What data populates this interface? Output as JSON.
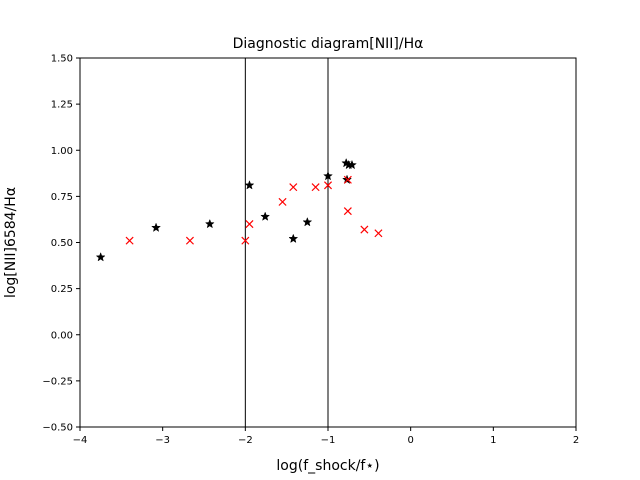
{
  "chart_data": {
    "type": "scatter",
    "title": "Diagnostic diagram[NII]/Hα",
    "xlabel": "log(f_shock/f⋆)",
    "ylabel": "log[NII]6584/Hα",
    "xlim": [
      -4,
      2
    ],
    "ylim": [
      -0.5,
      1.5
    ],
    "xticks": [
      "−4",
      "−3",
      "−2",
      "−1",
      "0",
      "1",
      "2"
    ],
    "yticks": [
      "−0.50",
      "−0.25",
      "0.00",
      "0.25",
      "0.50",
      "0.75",
      "1.00",
      "1.25",
      "1.50"
    ],
    "vlines": [
      -2,
      -1
    ],
    "grid": false,
    "series": [
      {
        "marker": "star",
        "color": "#000000",
        "points": [
          [
            -3.75,
            0.42
          ],
          [
            -3.08,
            0.58
          ],
          [
            -2.43,
            0.6
          ],
          [
            -1.95,
            0.81
          ],
          [
            -1.76,
            0.64
          ],
          [
            -1.42,
            0.52
          ],
          [
            -1.25,
            0.61
          ],
          [
            -1.0,
            0.86
          ],
          [
            -0.78,
            0.93
          ],
          [
            -0.75,
            0.92
          ],
          [
            -0.71,
            0.92
          ],
          [
            -0.77,
            0.84
          ]
        ]
      },
      {
        "marker": "x",
        "color": "#ff0000",
        "points": [
          [
            -3.4,
            0.51
          ],
          [
            -2.67,
            0.51
          ],
          [
            -2.0,
            0.51
          ],
          [
            -1.95,
            0.6
          ],
          [
            -1.55,
            0.72
          ],
          [
            -1.42,
            0.8
          ],
          [
            -1.15,
            0.8
          ],
          [
            -1.0,
            0.81
          ],
          [
            -0.76,
            0.84
          ],
          [
            -0.76,
            0.67
          ],
          [
            -0.56,
            0.57
          ],
          [
            -0.39,
            0.55
          ]
        ]
      }
    ]
  }
}
